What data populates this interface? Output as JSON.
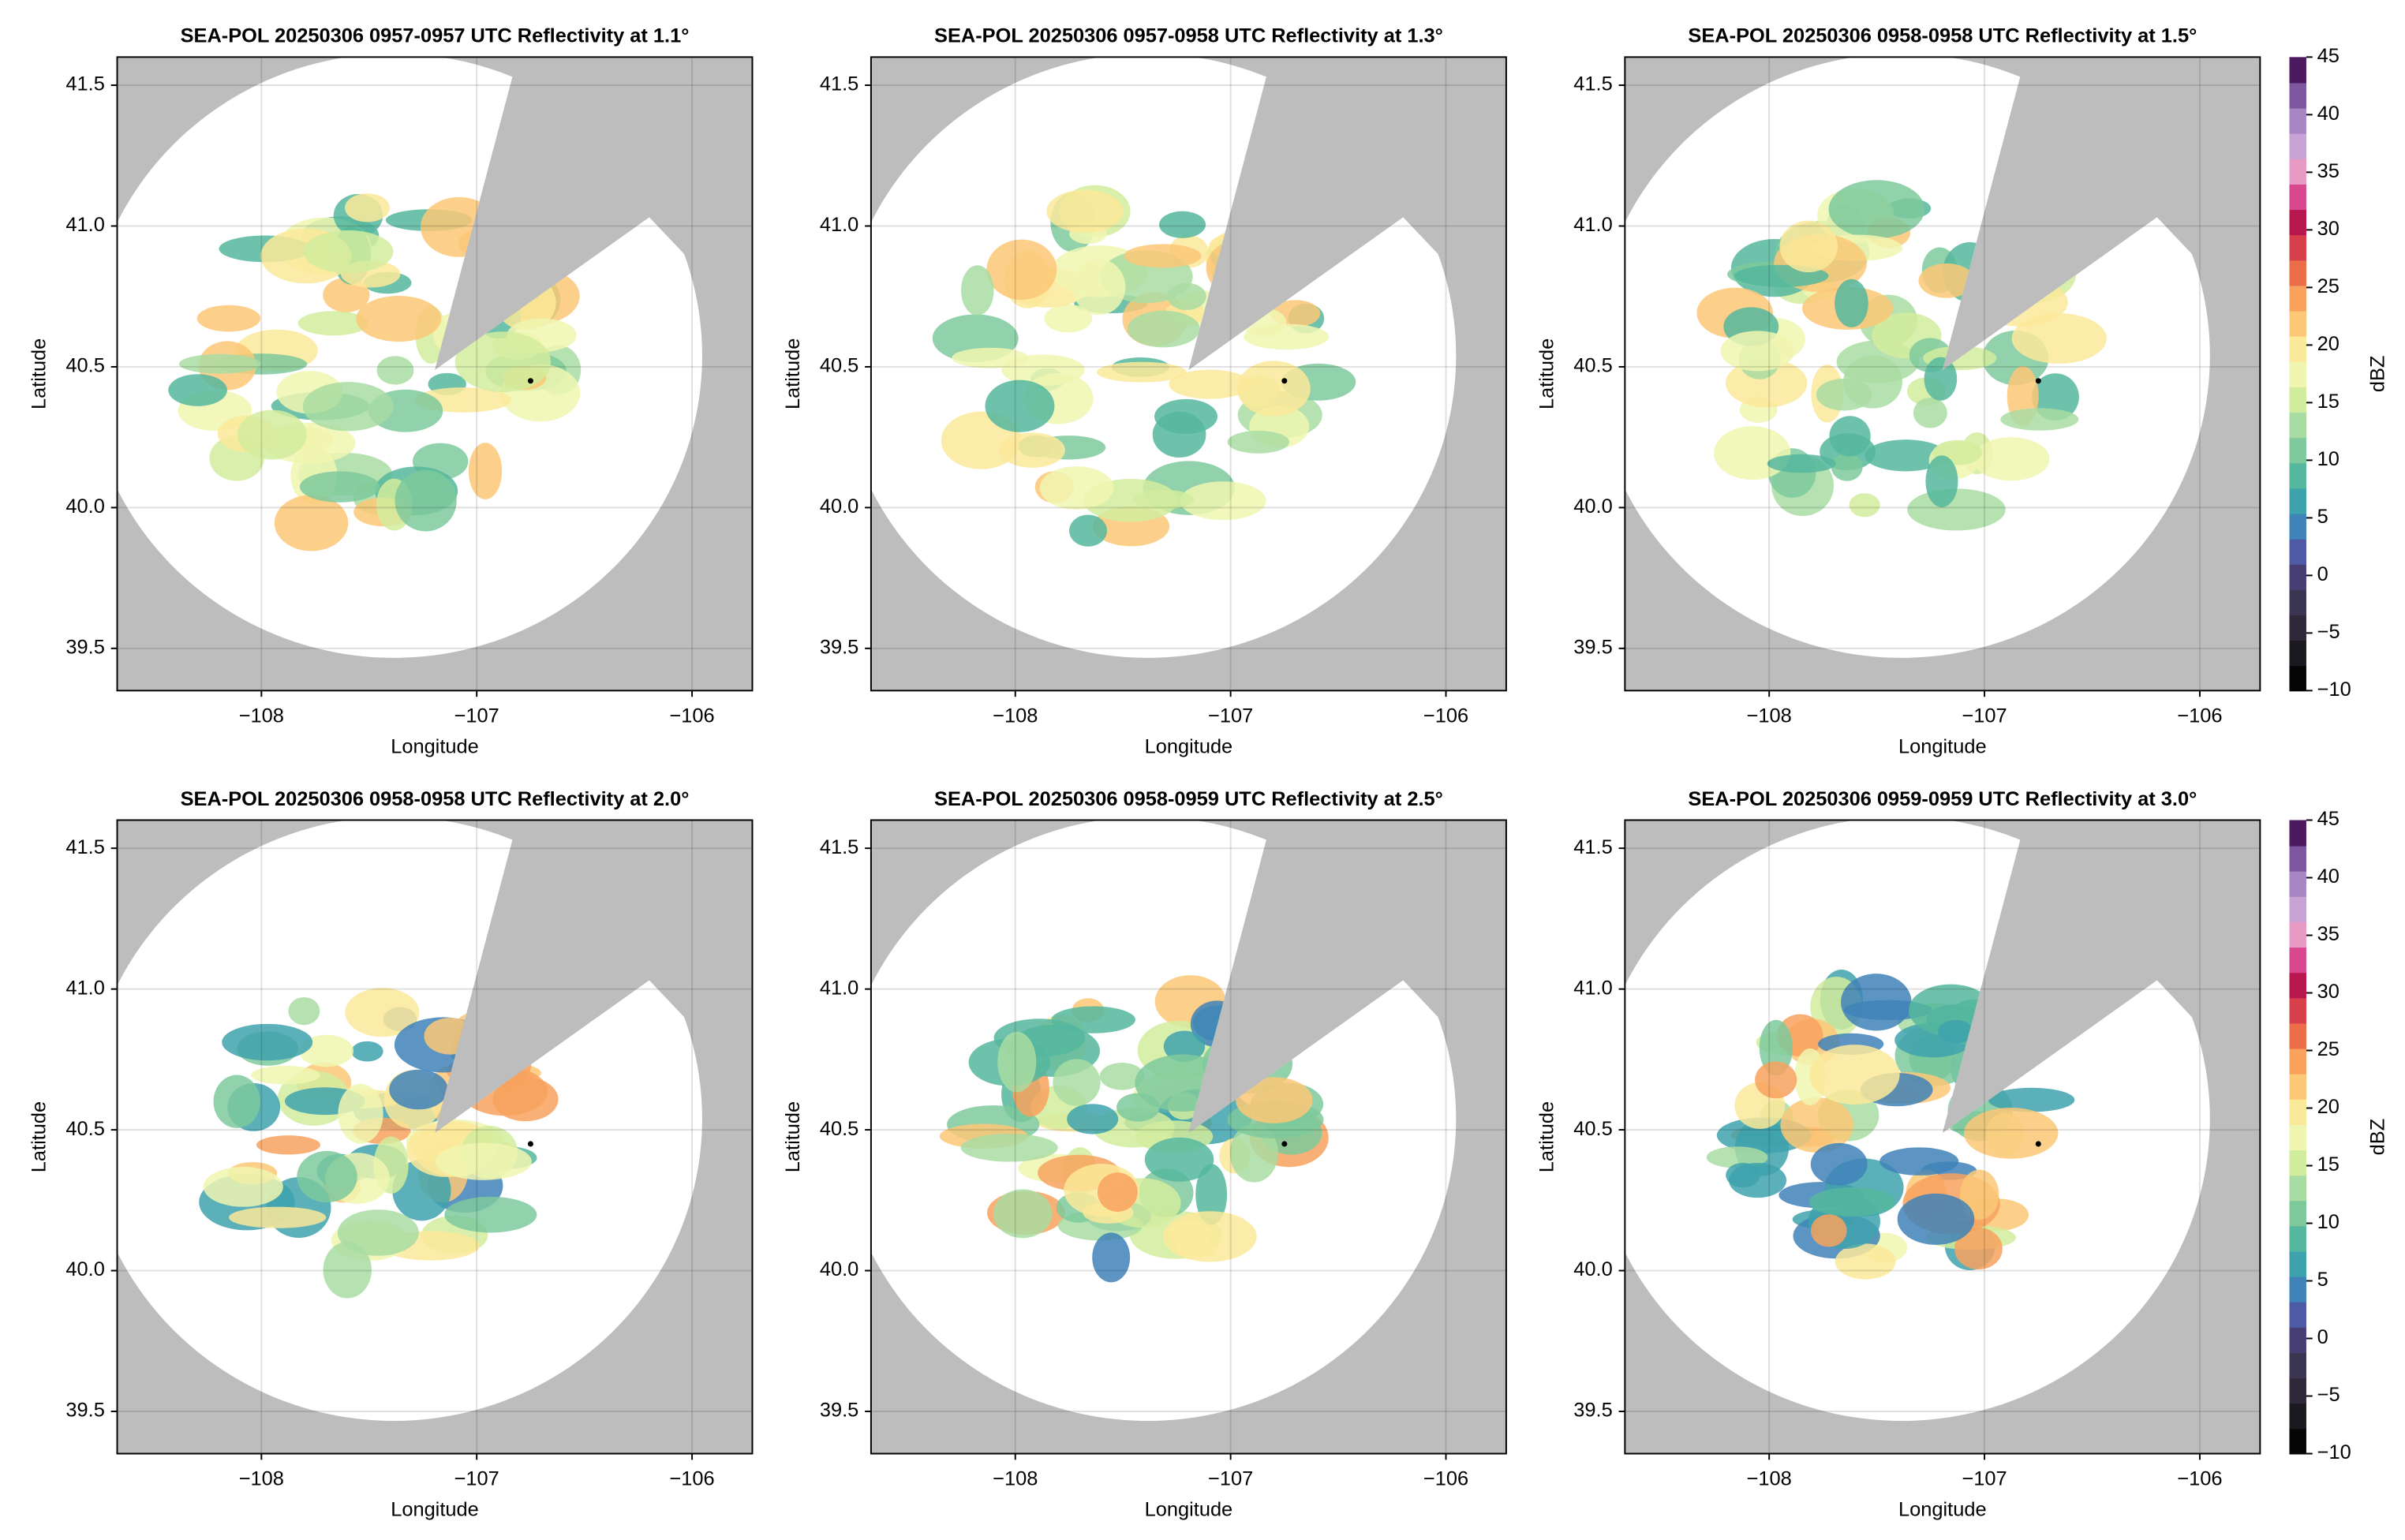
{
  "chart_data": [
    {
      "type": "radar",
      "title": "SEA-POL 20250306 0957-0957 UTC Reflectivity at 1.1°",
      "xlabel": "Longitude",
      "ylabel": "Latitude",
      "xlim": [
        -108.67,
        -105.72
      ],
      "ylim": [
        39.35,
        41.6
      ],
      "xticks": [
        {
          "value": -108,
          "label": "−108"
        },
        {
          "value": -107,
          "label": "−107"
        },
        {
          "value": -106,
          "label": "−106"
        }
      ],
      "yticks": [
        39.5,
        {
          "value": 40.0,
          "label": "40.0"
        },
        40.5,
        {
          "value": 41.0,
          "label": "41.0"
        },
        41.5
      ],
      "grid": true,
      "x": [
        -106.75
      ],
      "y": [
        40.45
      ]
    },
    {
      "type": "radar",
      "title": "SEA-POL 20250306 0957-0958 UTC Reflectivity at 1.3°",
      "xlabel": "Longitude",
      "ylabel": "Latitude",
      "xlim": [
        -108.67,
        -105.72
      ],
      "ylim": [
        39.35,
        41.6
      ],
      "xticks": [
        {
          "value": -108,
          "label": "−108"
        },
        {
          "value": -107,
          "label": "−107"
        },
        {
          "value": -106,
          "label": "−106"
        }
      ],
      "yticks": [
        39.5,
        {
          "value": 40.0,
          "label": "40.0"
        },
        40.5,
        {
          "value": 41.0,
          "label": "41.0"
        },
        41.5
      ],
      "grid": true,
      "x": [
        -106.75
      ],
      "y": [
        40.45
      ]
    },
    {
      "type": "radar",
      "title": "SEA-POL 20250306 0958-0958 UTC Reflectivity at 1.5°",
      "xlabel": "Longitude",
      "ylabel": "Latitude",
      "xlim": [
        -108.67,
        -105.72
      ],
      "ylim": [
        39.35,
        41.6
      ],
      "xticks": [
        {
          "value": -108,
          "label": "−108"
        },
        {
          "value": -107,
          "label": "−107"
        },
        {
          "value": -106,
          "label": "−106"
        }
      ],
      "yticks": [
        39.5,
        {
          "value": 40.0,
          "label": "40.0"
        },
        40.5,
        {
          "value": 41.0,
          "label": "41.0"
        },
        41.5
      ],
      "grid": true,
      "x": [
        -106.75
      ],
      "y": [
        40.45
      ],
      "colorbar": {
        "label": "dBZ",
        "lim": [
          -10,
          45
        ],
        "ticks": [
          {
            "value": -10,
            "label": "−10"
          },
          {
            "value": -5,
            "label": "−5"
          },
          0,
          5,
          10,
          15,
          20,
          25,
          30,
          35,
          40,
          45
        ],
        "colors": [
          "#050505",
          "#1c1820",
          "#2e2838",
          "#3c3552",
          "#473f74",
          "#4f5aa5",
          "#3f83b8",
          "#3ea2ad",
          "#55b79e",
          "#7ec99c",
          "#a9dca2",
          "#d2ec9e",
          "#f0f6b0",
          "#fbe99a",
          "#fcc877",
          "#f8a25e",
          "#ec6d4a",
          "#d6404b",
          "#b8164f",
          "#d9488f",
          "#e79ac3",
          "#c9a3d6",
          "#a886c4",
          "#7e57a0",
          "#4e1a5f"
        ]
      }
    },
    {
      "type": "radar",
      "title": "SEA-POL 20250306 0958-0958 UTC Reflectivity at 2.0°",
      "xlabel": "Longitude",
      "ylabel": "Latitude",
      "xlim": [
        -108.67,
        -105.72
      ],
      "ylim": [
        39.35,
        41.6
      ],
      "xticks": [
        {
          "value": -108,
          "label": "−108"
        },
        {
          "value": -107,
          "label": "−107"
        },
        {
          "value": -106,
          "label": "−106"
        }
      ],
      "yticks": [
        39.5,
        {
          "value": 40.0,
          "label": "40.0"
        },
        40.5,
        {
          "value": 41.0,
          "label": "41.0"
        },
        41.5
      ],
      "grid": true,
      "x": [
        -106.75
      ],
      "y": [
        40.45
      ]
    },
    {
      "type": "radar",
      "title": "SEA-POL 20250306 0958-0959 UTC Reflectivity at 2.5°",
      "xlabel": "Longitude",
      "ylabel": "Latitude",
      "xlim": [
        -108.67,
        -105.72
      ],
      "ylim": [
        39.35,
        41.6
      ],
      "xticks": [
        {
          "value": -108,
          "label": "−108"
        },
        {
          "value": -107,
          "label": "−107"
        },
        {
          "value": -106,
          "label": "−106"
        }
      ],
      "yticks": [
        39.5,
        {
          "value": 40.0,
          "label": "40.0"
        },
        40.5,
        {
          "value": 41.0,
          "label": "41.0"
        },
        41.5
      ],
      "grid": true,
      "x": [
        -106.75
      ],
      "y": [
        40.45
      ]
    },
    {
      "type": "radar",
      "title": "SEA-POL 20250306 0959-0959 UTC Reflectivity at 3.0°",
      "xlabel": "Longitude",
      "ylabel": "Latitude",
      "xlim": [
        -108.67,
        -105.72
      ],
      "ylim": [
        39.35,
        41.6
      ],
      "xticks": [
        {
          "value": -108,
          "label": "−108"
        },
        {
          "value": -107,
          "label": "−107"
        },
        {
          "value": -106,
          "label": "−106"
        }
      ],
      "yticks": [
        39.5,
        {
          "value": 40.0,
          "label": "40.0"
        },
        40.5,
        {
          "value": 41.0,
          "label": "41.0"
        },
        41.5
      ],
      "grid": true,
      "x": [
        -106.75
      ],
      "y": [
        40.45
      ],
      "colorbar": {
        "label": "dBZ",
        "lim": [
          -10,
          45
        ],
        "ticks": [
          {
            "value": -10,
            "label": "−10"
          },
          {
            "value": -5,
            "label": "−5"
          },
          0,
          5,
          10,
          15,
          20,
          25,
          30,
          35,
          40,
          45
        ],
        "colors": [
          "#050505",
          "#1c1820",
          "#2e2838",
          "#3c3552",
          "#473f74",
          "#4f5aa5",
          "#3f83b8",
          "#3ea2ad",
          "#55b79e",
          "#7ec99c",
          "#a9dca2",
          "#d2ec9e",
          "#f0f6b0",
          "#fbe99a",
          "#fcc877",
          "#f8a25e",
          "#ec6d4a",
          "#d6404b",
          "#b8164f",
          "#d9488f",
          "#e79ac3",
          "#c9a3d6",
          "#a886c4",
          "#7e57a0",
          "#4e1a5f"
        ]
      }
    }
  ]
}
